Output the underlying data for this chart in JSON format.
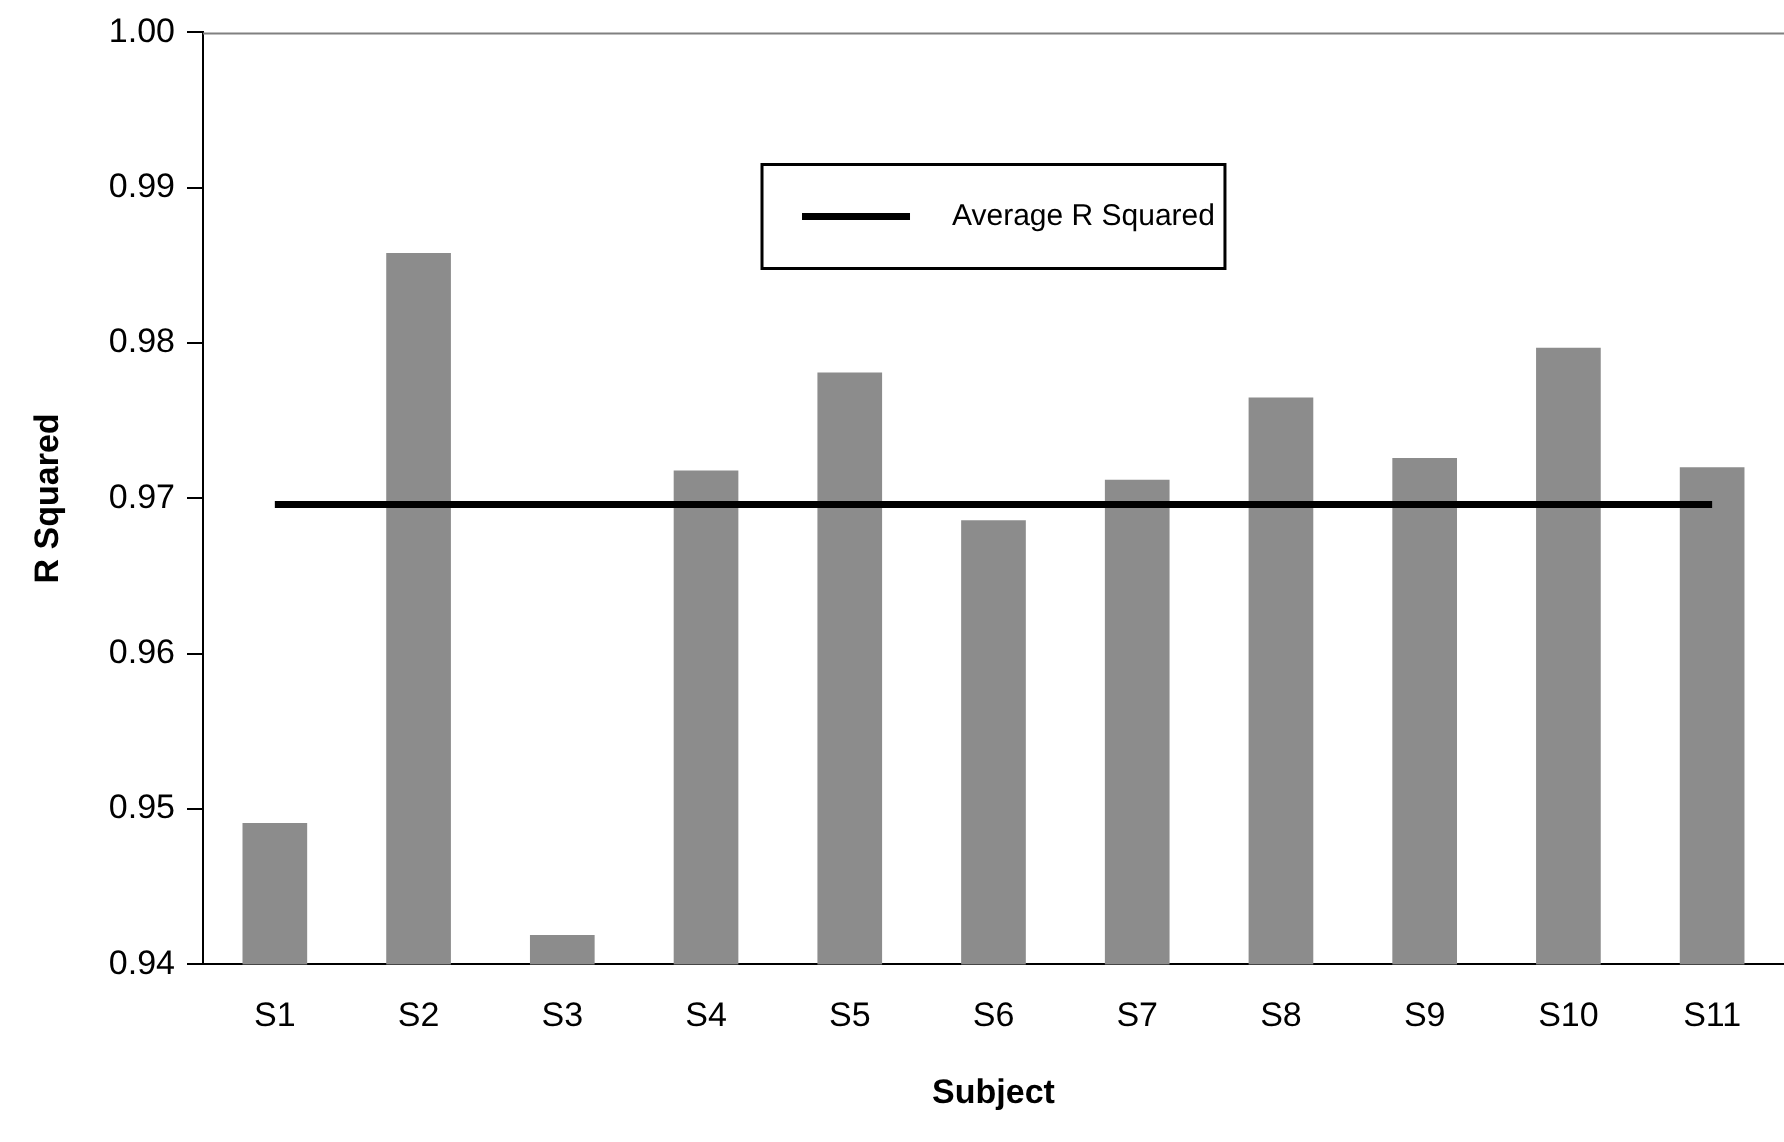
{
  "chart_data": {
    "type": "bar",
    "xlabel": "Subject",
    "ylabel": "R Squared",
    "categories": [
      "S1",
      "S2",
      "S3",
      "S4",
      "S5",
      "S6",
      "S7",
      "S8",
      "S9",
      "S10",
      "S11"
    ],
    "series": [
      {
        "color": "#8c8c8c",
        "values": [
          0.9491,
          0.9858,
          0.9419,
          0.9718,
          0.9781,
          0.9686,
          0.9712,
          0.9765,
          0.9726,
          0.9797,
          0.972
        ]
      },
      {
        "type": "line",
        "name": "Average R Squared",
        "color": "#000000",
        "values": [
          0.9696,
          0.9696,
          0.9696,
          0.9696,
          0.9696,
          0.9696,
          0.9696,
          0.9696,
          0.9696,
          0.9696,
          0.9696
        ]
      }
    ],
    "ylim": [
      0.94,
      1.0
    ],
    "yticks": [
      {
        "value": 0.94,
        "label": "0.94"
      },
      {
        "value": 0.95,
        "label": "0.95"
      },
      {
        "value": 0.96,
        "label": "0.96"
      },
      {
        "value": 0.97,
        "label": "0.97"
      },
      {
        "value": 0.98,
        "label": "0.98"
      },
      {
        "value": 0.99,
        "label": "0.99"
      },
      {
        "value": 1.0,
        "label": "1.00"
      }
    ],
    "grid": false,
    "legend": "top",
    "marker": "none",
    "line_style": "solid"
  }
}
